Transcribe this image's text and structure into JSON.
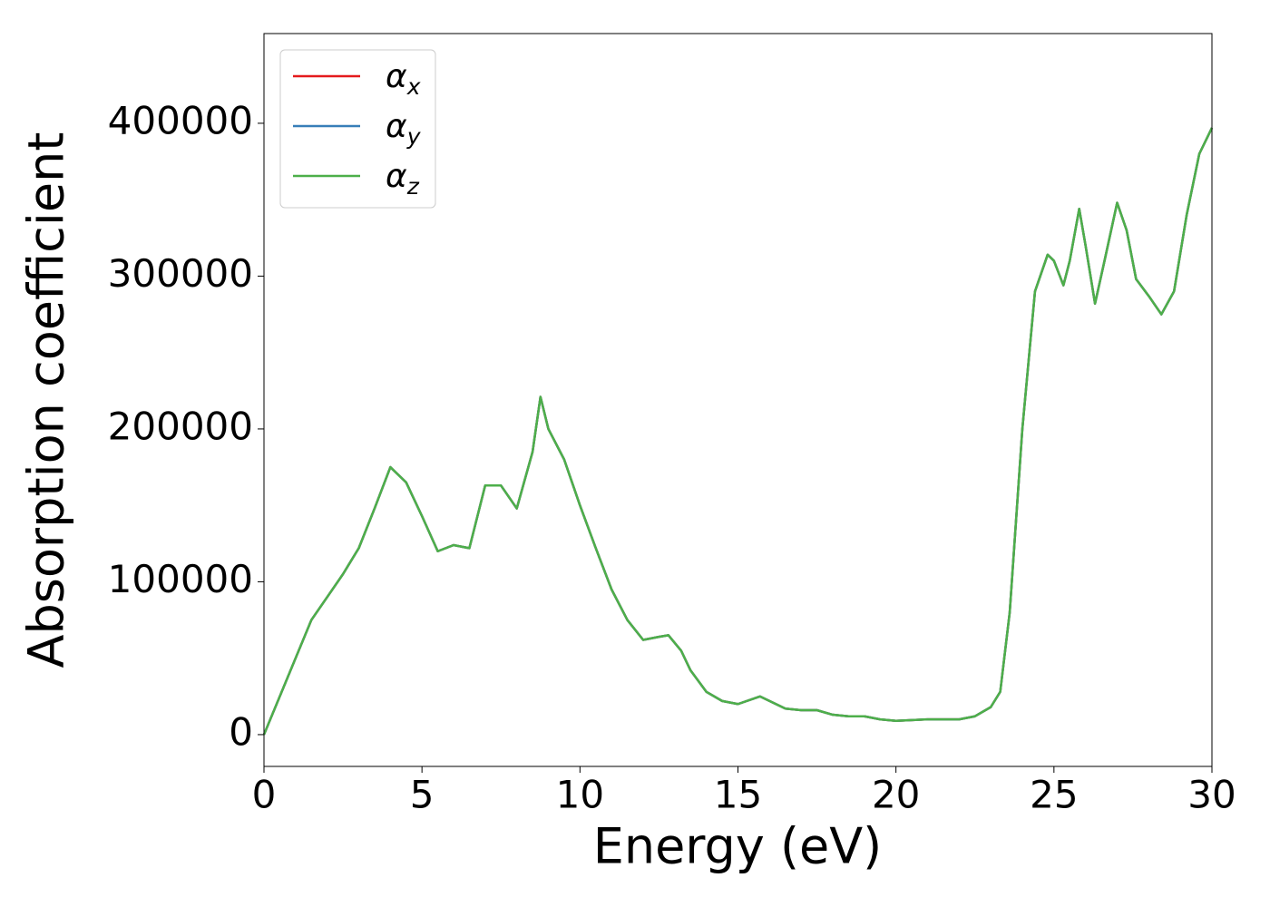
{
  "chart_data": {
    "type": "line",
    "xlabel": "Energy (eV)",
    "ylabel": "Absorption coefficient",
    "x": [
      0,
      0.5,
      1,
      1.5,
      2,
      2.5,
      3,
      3.5,
      4,
      4.5,
      5,
      5.5,
      6,
      6.5,
      7,
      7.5,
      8,
      8.5,
      8.75,
      9,
      9.5,
      10,
      10.5,
      11,
      11.5,
      12,
      12.5,
      12.8,
      13.2,
      13.5,
      14,
      14.5,
      15,
      15.7,
      16,
      16.5,
      17,
      17.5,
      18,
      18.5,
      19,
      19.5,
      20,
      21,
      22,
      22.5,
      23,
      23.3,
      23.6,
      24,
      24.4,
      24.8,
      25,
      25.3,
      25.5,
      25.8,
      26,
      26.3,
      26.6,
      27,
      27.3,
      27.6,
      28,
      28.4,
      28.8,
      29.2,
      29.6,
      30
    ],
    "series": [
      {
        "name": "αx",
        "color": "#e41a1c",
        "values": [
          0,
          25000,
          50000,
          75000,
          90000,
          105000,
          122000,
          148000,
          175000,
          165000,
          143000,
          120000,
          124000,
          122000,
          163000,
          163000,
          148000,
          185000,
          221000,
          200000,
          180000,
          150000,
          122000,
          95000,
          75000,
          62000,
          64000,
          65000,
          55000,
          42000,
          28000,
          22000,
          20000,
          25000,
          22000,
          17000,
          16000,
          16000,
          13000,
          12000,
          12000,
          10000,
          9000,
          10000,
          10000,
          12000,
          18000,
          28000,
          80000,
          200000,
          290000,
          314000,
          310000,
          294000,
          310000,
          344000,
          320000,
          282000,
          310000,
          348000,
          330000,
          298000,
          287000,
          275000,
          290000,
          340000,
          380000,
          397000
        ]
      },
      {
        "name": "αy",
        "color": "#377eb8",
        "values": [
          0,
          25000,
          50000,
          75000,
          90000,
          105000,
          122000,
          148000,
          175000,
          165000,
          143000,
          120000,
          124000,
          122000,
          163000,
          163000,
          148000,
          185000,
          221000,
          200000,
          180000,
          150000,
          122000,
          95000,
          75000,
          62000,
          64000,
          65000,
          55000,
          42000,
          28000,
          22000,
          20000,
          25000,
          22000,
          17000,
          16000,
          16000,
          13000,
          12000,
          12000,
          10000,
          9000,
          10000,
          10000,
          12000,
          18000,
          28000,
          80000,
          200000,
          290000,
          314000,
          310000,
          294000,
          310000,
          344000,
          320000,
          282000,
          310000,
          348000,
          330000,
          298000,
          287000,
          275000,
          290000,
          340000,
          380000,
          397000
        ]
      },
      {
        "name": "αz",
        "color": "#4daf4a",
        "values": [
          0,
          25000,
          50000,
          75000,
          90000,
          105000,
          122000,
          148000,
          175000,
          165000,
          143000,
          120000,
          124000,
          122000,
          163000,
          163000,
          148000,
          185000,
          221000,
          200000,
          180000,
          150000,
          122000,
          95000,
          75000,
          62000,
          64000,
          65000,
          55000,
          42000,
          28000,
          22000,
          20000,
          25000,
          22000,
          17000,
          16000,
          16000,
          13000,
          12000,
          12000,
          10000,
          9000,
          10000,
          10000,
          12000,
          18000,
          28000,
          80000,
          200000,
          290000,
          314000,
          310000,
          294000,
          310000,
          344000,
          320000,
          282000,
          310000,
          348000,
          330000,
          298000,
          287000,
          275000,
          290000,
          340000,
          380000,
          397000
        ]
      }
    ],
    "xlim": [
      0,
      30
    ],
    "xticks": [
      0,
      5,
      10,
      15,
      20,
      25,
      30
    ],
    "ylim": [
      -20800,
      458700
    ],
    "yticks": [
      0,
      100000,
      200000,
      300000,
      400000
    ],
    "legend": "upper left"
  }
}
